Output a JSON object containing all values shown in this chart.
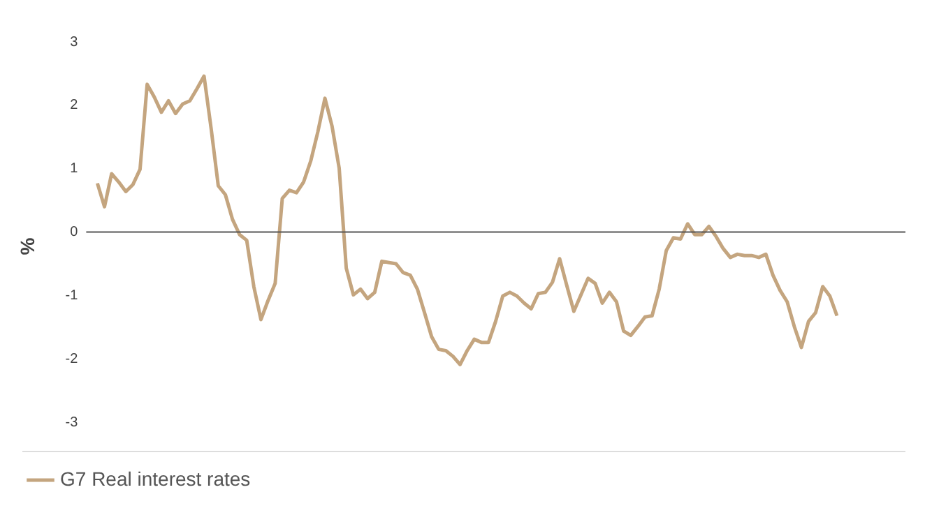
{
  "chart_data": {
    "type": "line",
    "ylabel": "%",
    "categories": [
      null,
      null,
      null,
      null,
      null,
      null,
      null,
      null,
      null,
      null,
      null,
      null,
      null,
      null,
      null,
      null,
      null,
      null,
      null,
      null,
      null,
      null,
      null,
      null,
      null,
      null,
      null,
      null,
      null,
      null,
      null,
      null,
      null,
      null,
      null,
      null,
      null,
      null,
      null,
      null,
      null,
      null,
      null,
      null,
      null,
      null,
      null,
      null,
      null,
      null,
      null,
      null,
      null,
      null,
      null,
      null,
      null,
      null,
      null,
      null,
      null,
      null,
      null,
      null,
      null,
      null,
      null,
      null,
      null,
      null,
      null,
      null,
      null,
      null,
      null,
      null,
      null,
      null,
      null,
      null,
      null,
      null,
      null,
      null,
      null,
      null,
      null,
      null,
      null,
      null,
      null,
      null,
      null,
      null,
      null,
      null,
      null,
      null,
      null,
      null,
      null,
      null,
      null,
      null,
      null
    ],
    "series": [
      {
        "name": "G7 Real interest rates",
        "color": "#c4a57f",
        "values": [
          0.77,
          0.4,
          0.92,
          0.79,
          0.64,
          0.75,
          0.99,
          2.33,
          2.13,
          1.89,
          2.07,
          1.87,
          2.02,
          2.07,
          2.26,
          2.46,
          1.63,
          0.73,
          0.59,
          0.2,
          -0.04,
          -0.13,
          -0.86,
          -1.38,
          -1.08,
          -0.81,
          0.53,
          0.66,
          0.62,
          0.79,
          1.12,
          1.58,
          2.11,
          1.67,
          1.01,
          -0.57,
          -0.99,
          -0.9,
          -1.05,
          -0.95,
          -0.46,
          -0.48,
          -0.5,
          -0.64,
          -0.68,
          -0.9,
          -1.27,
          -1.65,
          -1.85,
          -1.87,
          -1.96,
          -2.09,
          -1.87,
          -1.69,
          -1.74,
          -1.74,
          -1.41,
          -1.01,
          -0.95,
          -1.01,
          -1.12,
          -1.21,
          -0.97,
          -0.95,
          -0.79,
          -0.42,
          -0.84,
          -1.25,
          -0.99,
          -0.73,
          -0.81,
          -1.12,
          -0.95,
          -1.1,
          -1.56,
          -1.63,
          -1.49,
          -1.34,
          -1.32,
          -0.9,
          -0.29,
          -0.09,
          -0.11,
          0.13,
          -0.04,
          -0.04,
          0.09,
          -0.07,
          -0.26,
          -0.4,
          -0.35,
          -0.37,
          -0.37,
          -0.4,
          -0.35,
          -0.68,
          -0.92,
          -1.1,
          -1.49,
          -1.82,
          -1.41,
          -1.27,
          -0.86,
          -1.01,
          -1.32
        ]
      }
    ],
    "ylim": [
      -3.45,
      3
    ],
    "yticks": [
      -3,
      -2,
      -1,
      0,
      1,
      2,
      3
    ],
    "ref_lines": [
      {
        "axis": "y",
        "value": 0,
        "color": "#555555"
      }
    ],
    "grid": false,
    "legend": "bottom left",
    "marker": "none",
    "line_style": "solid"
  }
}
